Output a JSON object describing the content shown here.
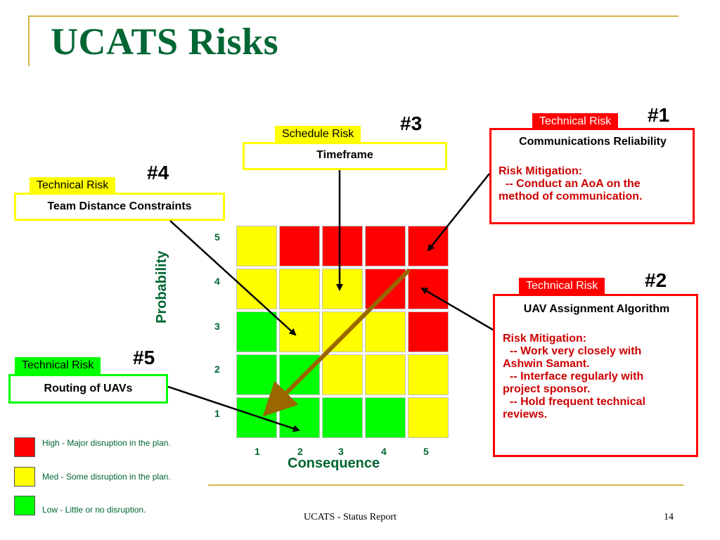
{
  "title": "UCATS Risks",
  "risks": {
    "r1": {
      "number": "#1",
      "tag": "Technical Risk",
      "heading": "Communications Reliability",
      "mitigation_label": "Risk Mitigation:",
      "lines": [
        "-- Conduct an AoA on the",
        "method of communication."
      ]
    },
    "r2": {
      "number": "#2",
      "tag": "Technical Risk",
      "heading": "UAV Assignment Algorithm",
      "mitigation_label": "Risk Mitigation:",
      "lines": [
        "-- Work very closely with",
        "Ashwin Samant.",
        "-- Interface regularly with",
        "project sponsor.",
        "-- Hold frequent technical",
        "reviews."
      ]
    },
    "r3": {
      "number": "#3",
      "tag": "Schedule Risk",
      "heading": "Timeframe"
    },
    "r4": {
      "number": "#4",
      "tag": "Technical Risk",
      "heading": "Team Distance Constraints"
    },
    "r5": {
      "number": "#5",
      "tag": "Technical Risk",
      "heading": "Routing of UAVs"
    }
  },
  "matrix": {
    "y_label": "Probability",
    "x_label": "Consequence",
    "y_ticks": [
      "5",
      "4",
      "3",
      "2",
      "1"
    ],
    "x_ticks": [
      "1",
      "2",
      "3",
      "4",
      "5"
    ],
    "rows": [
      [
        "yellow",
        "red",
        "red",
        "red",
        "red"
      ],
      [
        "yellow",
        "yellow",
        "yellow",
        "red",
        "red"
      ],
      [
        "green",
        "yellow",
        "yellow",
        "yellow",
        "red"
      ],
      [
        "green",
        "green",
        "yellow",
        "yellow",
        "yellow"
      ],
      [
        "green",
        "green",
        "green",
        "green",
        "yellow"
      ]
    ],
    "colors": {
      "red": "#ff0000",
      "yellow": "#ffff00",
      "green": "#00ff00"
    }
  },
  "legend": {
    "high": "High - Major disruption in the plan.",
    "med": "Med - Some disruption in the plan.",
    "low": "Low - Little or no disruption."
  },
  "footer": "UCATS - Status Report",
  "page_number": "14"
}
